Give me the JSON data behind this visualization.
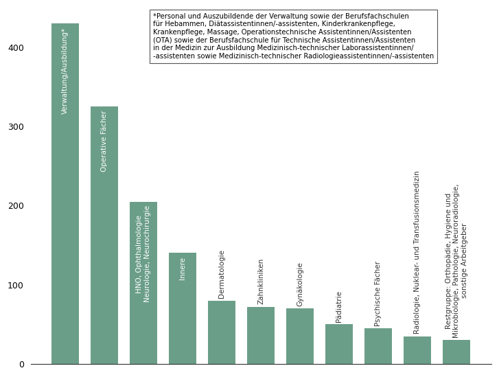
{
  "categories": [
    "Verwaltung/Ausbildung*",
    "Operative Fächer",
    "HNO, Ophthalmologie\nNeurologie, Neurochirurgie",
    "Innere",
    "Dermatologie",
    "Zahnkliniken",
    "Gynäkologie",
    "Pädiatrie",
    "Psychische Fächer",
    "Radiologie, Nuklear- und Transfusionsmedizin",
    "Restgruppe: Orthopädie, Hygiene und\nMikrobiologie, Pathologie, Neuroradiologie,\nsonstige Arbeitgeber"
  ],
  "values": [
    430,
    325,
    205,
    140,
    80,
    72,
    70,
    50,
    45,
    35,
    30
  ],
  "bar_color": "#6b9e88",
  "ylim": [
    0,
    450
  ],
  "yticks": [
    0,
    100,
    200,
    300,
    400
  ],
  "background_color": "#ffffff",
  "annotation_text": "*Personal und Auszubildende der Verwaltung sowie der Berufsfachschulen\nfür Hebammen, Diätassistentinnen/-assistenten, Kinderkrankenpflege,\nKrankenpflege, Massage, Operationstechnische Assistentinnen/Assistenten\n(OTA) sowie der Berufsfachschule für Technische Assistentinnen/Assistenten\nin der Medizin zur Ausbildung Medizinisch-technischer Laborassistentinnen/\n-assistenten sowie Medizinisch-technischer Radiologieassistentinnen/-assistenten",
  "annotation_fontsize": 7.2,
  "tick_label_fontsize": 7.5,
  "inside_threshold": 90
}
